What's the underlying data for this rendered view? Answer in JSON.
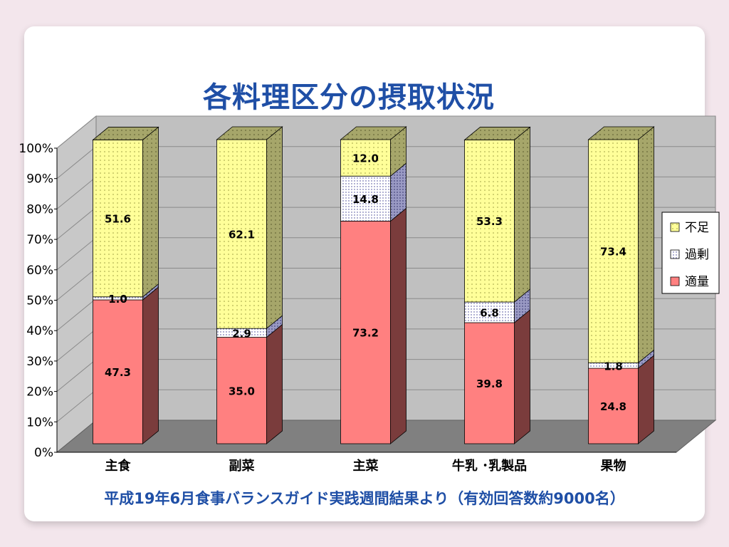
{
  "title": "各料理区分の摂取状況",
  "caption": "平成19年6月食事バランスガイド実践週間結果より（有効回答数約9000名）",
  "colors": {
    "adequate": "#ff8080",
    "adequate_side": "#7a3c3c",
    "excess": "#ffffff",
    "excess_side": "#8f8fb8",
    "shortage": "#ffff99",
    "shortage_side": "#9a9a5a"
  },
  "chart_data": {
    "type": "bar",
    "stacked": true,
    "percent_stacked": true,
    "three_d": true,
    "title": "各料理区分の摂取状況",
    "xlabel": "",
    "ylabel": "",
    "ylim": [
      0,
      100
    ],
    "yticks": [
      "0%",
      "10%",
      "20%",
      "30%",
      "40%",
      "50%",
      "60%",
      "70%",
      "80%",
      "90%",
      "100%"
    ],
    "categories": [
      "主食",
      "副菜",
      "主菜",
      "牛乳 ･乳製品",
      "果物"
    ],
    "series": [
      {
        "name": "適量",
        "values": [
          47.3,
          35.0,
          73.2,
          39.8,
          24.8
        ]
      },
      {
        "name": "過剰",
        "values": [
          1.0,
          2.9,
          14.8,
          6.8,
          1.8
        ]
      },
      {
        "name": "不足",
        "values": [
          51.6,
          62.1,
          12.0,
          53.3,
          73.4
        ]
      }
    ],
    "data_labels": [
      [
        "47.3",
        "35.0",
        "73.2",
        "39.8",
        "24.8"
      ],
      [
        "1.0",
        "2.9",
        "14.8",
        "6.8",
        "1.8"
      ],
      [
        "51.6",
        "62.1",
        "12.0",
        "53.3",
        "73.4"
      ]
    ],
    "legend": [
      "不足",
      "過剰",
      "適量"
    ],
    "legend_position": "right",
    "grid": true
  }
}
